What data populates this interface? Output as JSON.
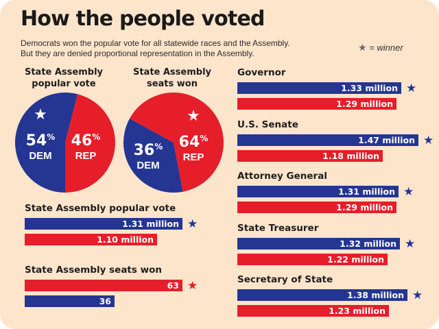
{
  "title": "How the people voted",
  "subtitle_lines": [
    "Democrats won the popular vote for all statewide races and the Assembly.",
    "But they are denied proportional representation in the Assembly."
  ],
  "legend": {
    "star": "★",
    "label": "= winner"
  },
  "colors": {
    "dem": "#253592",
    "rep": "#e61e2a",
    "background": "#fde5cc"
  },
  "chart_data": [
    {
      "type": "pie",
      "title": "State Assembly popular vote",
      "title_lines": [
        "State Assembly",
        "popular vote"
      ],
      "slices": [
        {
          "party": "DEM",
          "value": 54,
          "label": "54",
          "unit": "%",
          "winner": true
        },
        {
          "party": "REP",
          "value": 46,
          "label": "46",
          "unit": "%",
          "winner": false
        }
      ]
    },
    {
      "type": "pie",
      "title": "State Assembly seats won",
      "title_lines": [
        "State Assembly",
        "seats won"
      ],
      "slices": [
        {
          "party": "DEM",
          "value": 36,
          "label": "36",
          "unit": "%",
          "winner": false
        },
        {
          "party": "REP",
          "value": 64,
          "label": "64",
          "unit": "%",
          "winner": true
        }
      ]
    },
    {
      "type": "bar",
      "title": "State Assembly popular vote",
      "bars": [
        {
          "party": "DEM",
          "value": 1.31,
          "label": "1.31 million",
          "winner": true
        },
        {
          "party": "REP",
          "value": 1.1,
          "label": "1.10 million",
          "winner": false
        }
      ]
    },
    {
      "type": "bar",
      "title": "State Assembly seats won",
      "bars": [
        {
          "party": "REP",
          "value": 63,
          "label": "63",
          "winner": true
        },
        {
          "party": "DEM",
          "value": 36,
          "label": "36",
          "winner": false
        }
      ]
    },
    {
      "type": "bar",
      "title": "Governor",
      "bars": [
        {
          "party": "DEM",
          "value": 1.33,
          "label": "1.33 million",
          "winner": true
        },
        {
          "party": "REP",
          "value": 1.29,
          "label": "1.29 million",
          "winner": false
        }
      ]
    },
    {
      "type": "bar",
      "title": "U.S. Senate",
      "bars": [
        {
          "party": "DEM",
          "value": 1.47,
          "label": "1.47 million",
          "winner": true
        },
        {
          "party": "REP",
          "value": 1.18,
          "label": "1.18 million",
          "winner": false
        }
      ]
    },
    {
      "type": "bar",
      "title": "Attorney General",
      "bars": [
        {
          "party": "DEM",
          "value": 1.31,
          "label": "1.31 million",
          "winner": true
        },
        {
          "party": "REP",
          "value": 1.29,
          "label": "1.29 million",
          "winner": false
        }
      ]
    },
    {
      "type": "bar",
      "title": "State Treasurer",
      "bars": [
        {
          "party": "DEM",
          "value": 1.32,
          "label": "1.32 million",
          "winner": true
        },
        {
          "party": "REP",
          "value": 1.22,
          "label": "1.22 million",
          "winner": false
        }
      ]
    },
    {
      "type": "bar",
      "title": "Secretary of State",
      "bars": [
        {
          "party": "DEM",
          "value": 1.38,
          "label": "1.38 million",
          "winner": true
        },
        {
          "party": "REP",
          "value": 1.23,
          "label": "1.23 million",
          "winner": false
        }
      ]
    }
  ]
}
